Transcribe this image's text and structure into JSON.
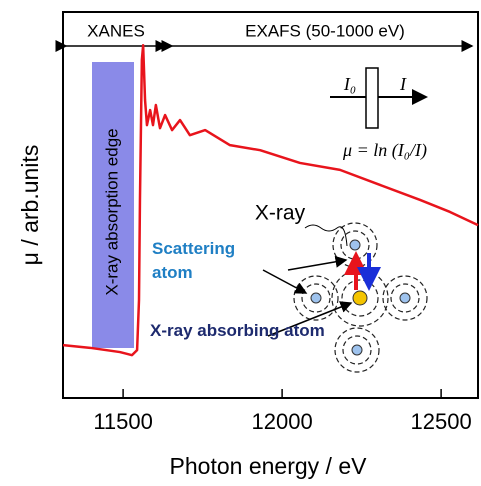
{
  "chart_data": {
    "type": "line",
    "xlabel": "Photon energy / eV",
    "ylabel": "μ / arb.units",
    "x": [
      11311,
      11396,
      11490,
      11528,
      11544,
      11550,
      11553,
      11559,
      11563,
      11569,
      11575,
      11585,
      11594,
      11603,
      11616,
      11632,
      11654,
      11679,
      11710,
      11758,
      11836,
      11931,
      12056,
      12182,
      12308,
      12434,
      12528,
      12616
    ],
    "values": [
      0.137,
      0.13,
      0.119,
      0.111,
      0.124,
      0.254,
      0.513,
      0.876,
      0.914,
      0.772,
      0.707,
      0.746,
      0.707,
      0.759,
      0.699,
      0.733,
      0.694,
      0.72,
      0.681,
      0.694,
      0.655,
      0.642,
      0.609,
      0.591,
      0.552,
      0.513,
      0.482,
      0.448
    ],
    "color": "#e8141c",
    "xlim": [
      11311,
      12616
    ],
    "ylim": [
      0,
      1
    ],
    "xticks": [
      11500,
      12000,
      12500
    ],
    "annotations": {
      "xanes": "XANES",
      "exafs": "EXAFS (50-1000 eV)",
      "edge": "X-ray absorption edge",
      "i0": "I₀",
      "i": "I",
      "formula": "μ = ln (I₀/I)",
      "xray": "X-ray",
      "scattering": "Scattering atom",
      "absorbing": "X-ray absorbing atom"
    }
  }
}
